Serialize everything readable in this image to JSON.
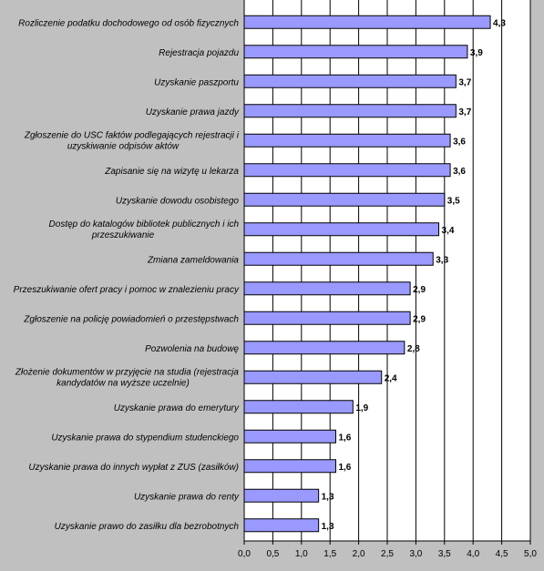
{
  "chart_data": {
    "type": "bar",
    "orientation": "horizontal",
    "title": "",
    "xlabel": "",
    "ylabel": "",
    "xlim": [
      0,
      5
    ],
    "x_ticks": [
      "0,0",
      "0,5",
      "1,0",
      "1,5",
      "2,0",
      "2,5",
      "3,0",
      "3,5",
      "4,0",
      "4,5",
      "5,0"
    ],
    "grid": true,
    "legend": "none",
    "bar_color": "#9999ff",
    "bar_edge_color": "#000000",
    "plot_background": "#ffffff",
    "categories": [
      [
        "Rozliczenie podatku dochodowego od osób fizycznych"
      ],
      [
        "Rejestracja pojazdu"
      ],
      [
        "Uzyskanie paszportu"
      ],
      [
        "Uzyskanie prawa jazdy"
      ],
      [
        "Zgłoszenie do USC faktów podlegających rejestracji i",
        "uzyskiwanie odpisów aktów"
      ],
      [
        "Zapisanie się na wizytę u lekarza"
      ],
      [
        "Uzyskanie dowodu osobistego"
      ],
      [
        "Dostęp do katalogów bibliotek publicznych i ich",
        "przeszukiwanie"
      ],
      [
        "Zmiana zameldowania"
      ],
      [
        "Przeszukiwanie ofert pracy i pomoc w znalezieniu pracy"
      ],
      [
        "Zgłoszenie na policję powiadomień o przestępstwach"
      ],
      [
        "Pozwolenia na budowę"
      ],
      [
        "Złożenie dokumentów w przyjęcie na studia (rejestracja",
        "kandydatów na wyższe uczelnie)"
      ],
      [
        "Uzyskanie prawa do emerytury"
      ],
      [
        "Uzyskanie prawa do stypendium studenckiego"
      ],
      [
        "Uzyskanie prawa do innych wypłat z ZUS (zasiłków)"
      ],
      [
        "Uzyskanie prawa do renty"
      ],
      [
        "Uzyskanie prawo do zasiłku dla bezrobotnych"
      ]
    ],
    "values": [
      4.3,
      3.9,
      3.7,
      3.7,
      3.6,
      3.6,
      3.5,
      3.4,
      3.3,
      2.9,
      2.9,
      2.8,
      2.4,
      1.9,
      1.6,
      1.6,
      1.3,
      1.3
    ],
    "value_labels": [
      "4,3",
      "3,9",
      "3,7",
      "3,7",
      "3,6",
      "3,6",
      "3,5",
      "3,4",
      "3,3",
      "2,9",
      "2,9",
      "2,8",
      "2,4",
      "1,9",
      "1,6",
      "1,6",
      "1,3",
      "1,3"
    ]
  }
}
